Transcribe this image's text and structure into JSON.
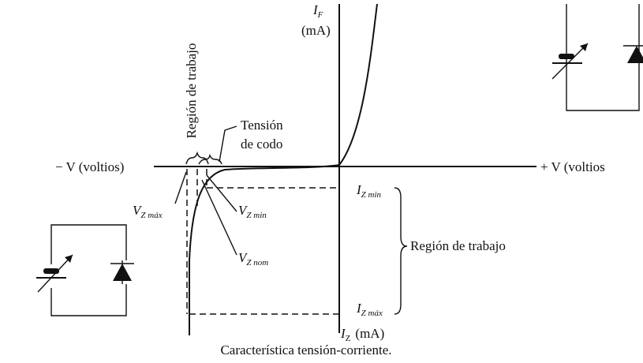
{
  "axis_labels": {
    "if": {
      "main": "I",
      "sub": "F"
    },
    "if_unit": "(mA)",
    "neg_v": "− V (voltios)",
    "pos_v": "+ V (voltios",
    "iz": {
      "main": "I",
      "sub": "Z",
      "unit": "(mA)"
    }
  },
  "annotations": {
    "region_vertical": "Región de trabajo",
    "knee_line1": "Tensión",
    "knee_line2": "de codo",
    "vz_max": {
      "main": "V",
      "sub": "Z máx"
    },
    "vz_min": {
      "main": "V",
      "sub": "Z min"
    },
    "vz_nom": {
      "main": "V",
      "sub": "Z nom"
    },
    "iz_min": {
      "main": "I",
      "sub": "Z min"
    },
    "iz_max": {
      "main": "I",
      "sub": "Z máx"
    },
    "region_current": "Región de trabajo"
  },
  "caption": "Característica tensión-corriente."
}
